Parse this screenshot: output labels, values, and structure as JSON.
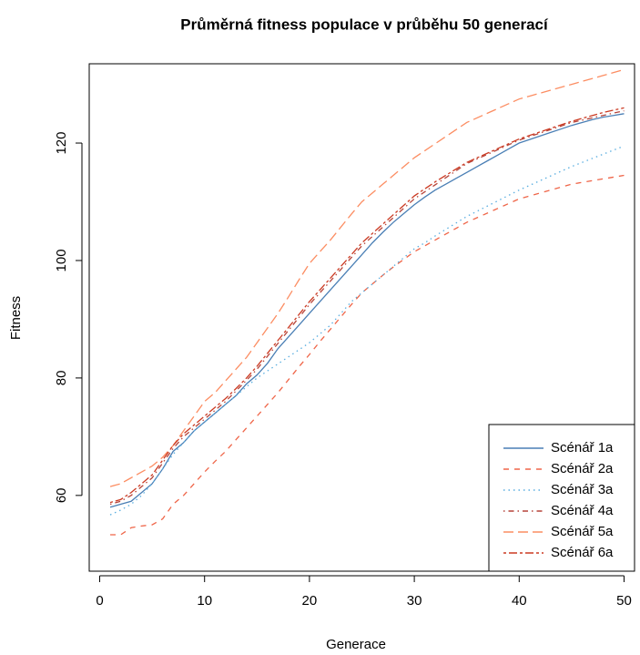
{
  "chart_data": {
    "type": "line",
    "title": "Průměrná fitness populace v průběhu 50 generací",
    "x_label": "Generace",
    "y_label": "Fitness",
    "x": [
      1,
      2,
      3,
      4,
      5,
      6,
      7,
      8,
      9,
      10,
      11,
      12,
      13,
      14,
      15,
      16,
      17,
      18,
      19,
      20,
      21,
      22,
      23,
      24,
      25,
      26,
      27,
      28,
      29,
      30,
      31,
      32,
      33,
      34,
      35,
      36,
      37,
      38,
      39,
      40,
      41,
      42,
      43,
      44,
      45,
      46,
      47,
      48,
      49,
      50
    ],
    "xlim": [
      -1,
      51
    ],
    "xticks": [
      0,
      10,
      20,
      30,
      40,
      50
    ],
    "ylim": [
      47.1,
      133.5
    ],
    "yticks": [
      60,
      80,
      100,
      120
    ],
    "legend": "bottom-right",
    "series": [
      {
        "name": "Scénář 1a",
        "color": "#4a7fb5",
        "linestyle": "solid",
        "values": [
          58,
          58.5,
          59,
          60.5,
          62,
          64.5,
          67.5,
          69,
          71,
          72.5,
          74,
          75.5,
          77,
          79,
          80.5,
          82.5,
          85,
          87,
          89,
          91,
          93,
          95,
          97,
          99,
          101,
          103,
          104.8,
          106.5,
          108,
          109.5,
          110.8,
          112,
          113,
          114,
          115,
          116,
          117,
          118,
          119,
          120,
          120.6,
          121.2,
          121.8,
          122.4,
          123,
          123.5,
          124,
          124.4,
          124.7,
          125
        ]
      },
      {
        "name": "Scénář 2a",
        "color": "#ef6548",
        "linestyle": "dashed",
        "values": [
          53.3,
          53.3,
          54.5,
          54.8,
          55,
          56,
          58.5,
          60,
          62,
          64,
          65.8,
          67.5,
          69.5,
          71.5,
          73.5,
          75.5,
          77.5,
          79.7,
          81.9,
          84,
          86.2,
          88.3,
          90.4,
          92.5,
          94.5,
          96,
          97.5,
          98.9,
          100.2,
          101.5,
          102.5,
          103.5,
          104.5,
          105.5,
          106.5,
          107.3,
          108.1,
          108.9,
          109.7,
          110.5,
          111,
          111.5,
          112,
          112.5,
          113,
          113.3,
          113.6,
          113.9,
          114.2,
          114.5
        ]
      },
      {
        "name": "Scénář 3a",
        "color": "#5aaee0",
        "linestyle": "dotted",
        "values": [
          56.7,
          57.5,
          58.5,
          60,
          62,
          64.5,
          67,
          69,
          71,
          72.5,
          74,
          75.5,
          77,
          78.5,
          80,
          81.2,
          82.4,
          83.6,
          84.8,
          86,
          87.5,
          89,
          91,
          93,
          94.5,
          96,
          97.5,
          99,
          100.5,
          102,
          103,
          104.2,
          105.3,
          106.4,
          107.5,
          108.4,
          109.3,
          110.2,
          111.1,
          112,
          112.8,
          113.6,
          114.4,
          115.2,
          116,
          116.7,
          117.4,
          118.1,
          118.8,
          119.5
        ]
      },
      {
        "name": "Scénář 4a",
        "color": "#b5443a",
        "linestyle": "dotdash",
        "values": [
          58.5,
          59,
          60,
          61.5,
          63,
          65.5,
          68,
          70,
          71.5,
          73,
          74.5,
          76,
          77.8,
          79.6,
          81.5,
          83.7,
          85.9,
          88.1,
          90.3,
          92.5,
          94.5,
          96.5,
          98.5,
          100.5,
          102.5,
          104.1,
          105.7,
          107.3,
          108.9,
          110.5,
          111.7,
          112.9,
          114.1,
          115.3,
          116.5,
          117.3,
          118.1,
          118.9,
          119.7,
          120.5,
          121.1,
          121.7,
          122.3,
          122.9,
          123.5,
          123.9,
          124.3,
          124.7,
          125.1,
          125.5
        ]
      },
      {
        "name": "Scénář 5a",
        "color": "#fc8d62",
        "linestyle": "longdash",
        "values": [
          61.5,
          62,
          63,
          64,
          65,
          66.5,
          68.5,
          71,
          73.5,
          76,
          77.5,
          79.5,
          81.5,
          83.5,
          86,
          88.5,
          91,
          93.8,
          96.7,
          99.5,
          101.5,
          103.5,
          105.7,
          107.9,
          110,
          111.5,
          113,
          114.5,
          116,
          117.5,
          118.7,
          119.9,
          121.1,
          122.3,
          123.5,
          124.3,
          125.1,
          125.9,
          126.7,
          127.5,
          128,
          128.5,
          129,
          129.5,
          130,
          130.5,
          131,
          131.5,
          132,
          132.5
        ]
      },
      {
        "name": "Scénář 6a",
        "color": "#cb3a22",
        "linestyle": "twodash",
        "values": [
          58.8,
          59.3,
          60.5,
          62,
          63.5,
          66,
          68.5,
          70.5,
          72,
          73.5,
          75,
          76.5,
          78.2,
          80,
          82,
          84.2,
          86.4,
          88.6,
          90.8,
          93,
          95,
          97,
          99,
          101,
          103,
          104.6,
          106.2,
          107.8,
          109.4,
          111,
          112.2,
          113.4,
          114.5,
          115.6,
          116.7,
          117.5,
          118.3,
          119.1,
          119.9,
          120.7,
          121.3,
          121.9,
          122.5,
          123.1,
          123.7,
          124.2,
          124.7,
          125.2,
          125.6,
          126
        ]
      }
    ]
  }
}
